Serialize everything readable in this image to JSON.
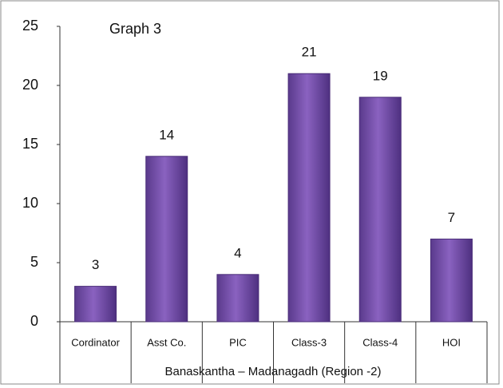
{
  "chart_data": {
    "type": "bar",
    "title": "Graph 3",
    "x_label": "Banaskantha – Madanagadh (Region -2)",
    "categories": [
      "Cordinator",
      "Asst Co.",
      "PIC",
      "Class-3",
      "Class-4",
      "HOI"
    ],
    "values": [
      3,
      14,
      4,
      21,
      19,
      7
    ],
    "color": "#6a45a0",
    "ylim": [
      0,
      25
    ],
    "yticks": [
      0,
      5,
      10,
      15,
      20,
      25
    ],
    "grid": false
  }
}
